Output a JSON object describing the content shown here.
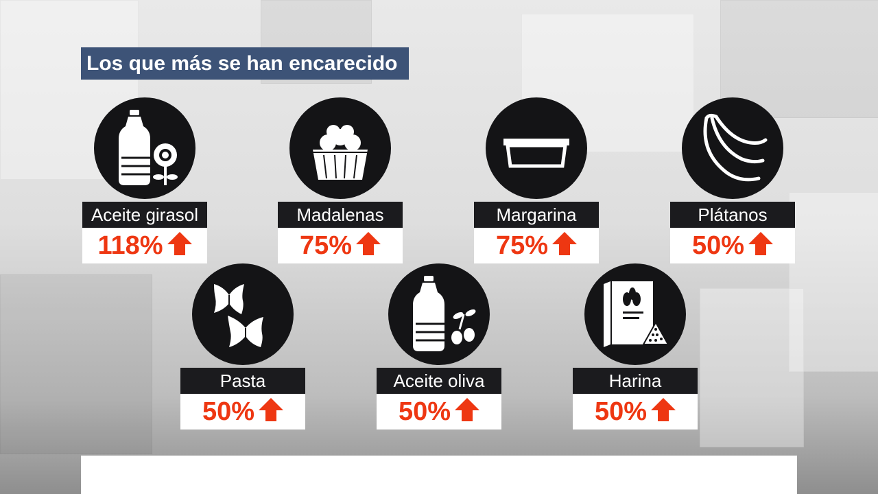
{
  "title": "Los que más se han encarecido",
  "accent_color": "#ee3712",
  "items": [
    {
      "label": "Aceite girasol",
      "value": "118%",
      "icon": "sunflower-oil-bottle-icon"
    },
    {
      "label": "Madalenas",
      "value": "75%",
      "icon": "muffins-icon"
    },
    {
      "label": "Margarina",
      "value": "75%",
      "icon": "margarine-tub-icon"
    },
    {
      "label": "Plátanos",
      "value": "50%",
      "icon": "bananas-icon"
    },
    {
      "label": "Pasta",
      "value": "50%",
      "icon": "farfalle-pasta-icon"
    },
    {
      "label": "Aceite oliva",
      "value": "50%",
      "icon": "olive-oil-bottle-icon"
    },
    {
      "label": "Harina",
      "value": "50%",
      "icon": "flour-bag-icon"
    }
  ]
}
